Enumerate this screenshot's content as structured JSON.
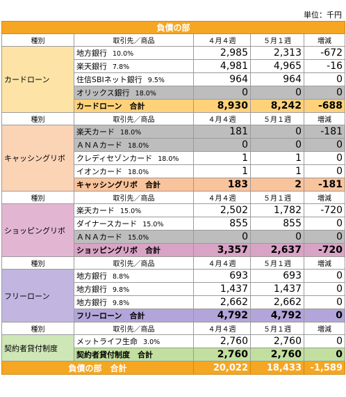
{
  "unit_label": "単位：千円",
  "title": "負債の部",
  "headers": {
    "type": "種別",
    "name": "取引先／商品",
    "week_a": "４月４週",
    "week_b": "５月１週",
    "diff": "増減"
  },
  "sections": [
    {
      "category": "カードローン",
      "color": "#fde4a6",
      "total_color": "#ffd27a",
      "rows": [
        {
          "name": "地方銀行",
          "rate": "10.0%",
          "a": "2,985",
          "b": "2,313",
          "diff": "-672",
          "grey": false
        },
        {
          "name": "楽天銀行",
          "rate": "7.8%",
          "a": "4,981",
          "b": "4,965",
          "diff": "-16",
          "grey": false
        },
        {
          "name": "住信SBIネット銀行",
          "rate": "9.5%",
          "a": "964",
          "b": "964",
          "diff": "0",
          "grey": false
        },
        {
          "name": "オリックス銀行",
          "rate": "18.0%",
          "a": "0",
          "b": "0",
          "diff": "0",
          "grey": true
        }
      ],
      "total": {
        "label": "カードローン　合計",
        "a": "8,930",
        "b": "8,242",
        "diff": "-688"
      }
    },
    {
      "category": "キャッシングリボ",
      "color": "#fbd3b5",
      "total_color": "#f9c39b",
      "rows": [
        {
          "name": "楽天カード",
          "rate": "18.0%",
          "a": "181",
          "b": "0",
          "diff": "-181",
          "grey": true
        },
        {
          "name": "ＡＮＡカード",
          "rate": "18.0%",
          "a": "0",
          "b": "0",
          "diff": "0",
          "grey": true
        },
        {
          "name": "クレディセゾンカード",
          "rate": "18.0%",
          "a": "1",
          "b": "1",
          "diff": "0",
          "grey": false
        },
        {
          "name": "イオンカード",
          "rate": "18.0%",
          "a": "1",
          "b": "1",
          "diff": "0",
          "grey": false
        }
      ],
      "total": {
        "label": "キャッシングリボ　合計",
        "a": "183",
        "b": "2",
        "diff": "-181"
      }
    },
    {
      "category": "ショッピングリボ",
      "color": "#e2b6d3",
      "total_color": "#d9a3c6",
      "rows": [
        {
          "name": "楽天カード",
          "rate": "15.0%",
          "a": "2,502",
          "b": "1,782",
          "diff": "-720",
          "grey": false
        },
        {
          "name": "ダイナースカード",
          "rate": "15.0%",
          "a": "855",
          "b": "855",
          "diff": "0",
          "grey": false
        },
        {
          "name": "ＡＮＡカード",
          "rate": "15.0%",
          "a": "0",
          "b": "0",
          "diff": "0",
          "grey": true
        }
      ],
      "total": {
        "label": "ショッピングリボ　合計",
        "a": "3,357",
        "b": "2,637",
        "diff": "-720"
      }
    },
    {
      "category": "フリーローン",
      "color": "#c2b6e0",
      "total_color": "#b3a5d9",
      "rows": [
        {
          "name": "地方銀行",
          "rate": "8.8%",
          "a": "693",
          "b": "693",
          "diff": "0",
          "grey": false
        },
        {
          "name": "地方銀行",
          "rate": "9.8%",
          "a": "1,437",
          "b": "1,437",
          "diff": "0",
          "grey": false
        },
        {
          "name": "地方銀行",
          "rate": "9.8%",
          "a": "2,662",
          "b": "2,662",
          "diff": "0",
          "grey": false
        }
      ],
      "total": {
        "label": "フリーローン　合計",
        "a": "4,792",
        "b": "4,792",
        "diff": "0"
      }
    },
    {
      "category": "契約者貸付制度",
      "color": "#cfe6b6",
      "total_color": "#c2df9f",
      "rows": [
        {
          "name": "メットライフ生命",
          "rate": "3.0%",
          "a": "2,760",
          "b": "2,760",
          "diff": "0",
          "grey": false
        }
      ],
      "total": {
        "label": "契約者貸付制度　合計",
        "a": "2,760",
        "b": "2,760",
        "diff": "0"
      }
    }
  ],
  "grand_total": {
    "label": "負債の部　合計",
    "a": "20,022",
    "b": "18,433",
    "diff": "-1,589"
  }
}
